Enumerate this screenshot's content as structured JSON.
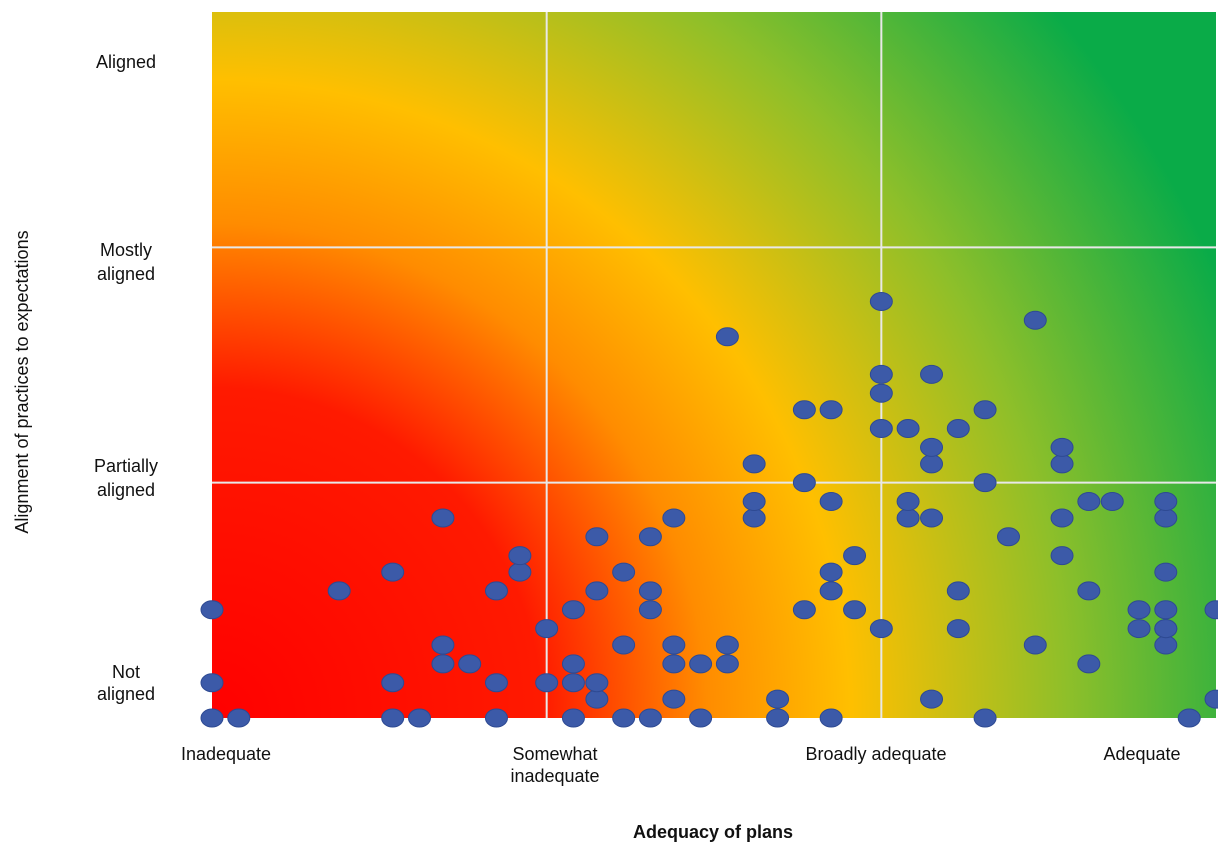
{
  "chart_data": {
    "type": "scatter",
    "title": "",
    "xlabel": "Adequacy of plans",
    "ylabel": "Alignment of practices to expectations",
    "x_tick_labels": [
      [
        "Inadequate"
      ],
      [
        "Somewhat",
        "inadequate"
      ],
      [
        "Broadly adequate"
      ],
      [
        "Adequate"
      ]
    ],
    "y_tick_labels": [
      [
        "Not",
        "aligned"
      ],
      [
        "Partially",
        "aligned"
      ],
      [
        "Mostly",
        "aligned"
      ],
      [
        "Aligned"
      ]
    ],
    "xlim": [
      0,
      3
    ],
    "ylim": [
      0,
      3
    ],
    "grid": true,
    "background_gradient": "red at bottom-left through orange and yellow to green at top-right",
    "point_color": "#3c5aa8",
    "points": [
      [
        0.0,
        0.0
      ],
      [
        0.08,
        0.0
      ],
      [
        0.54,
        0.0
      ],
      [
        0.62,
        0.0
      ],
      [
        0.85,
        0.0
      ],
      [
        1.08,
        0.0
      ],
      [
        1.23,
        0.0
      ],
      [
        1.31,
        0.0
      ],
      [
        1.46,
        0.0
      ],
      [
        1.69,
        0.0
      ],
      [
        1.85,
        0.0
      ],
      [
        2.31,
        0.0
      ],
      [
        2.92,
        0.0
      ],
      [
        1.15,
        0.08
      ],
      [
        1.38,
        0.08
      ],
      [
        1.69,
        0.08
      ],
      [
        2.15,
        0.08
      ],
      [
        3.0,
        0.08
      ],
      [
        0.0,
        0.15
      ],
      [
        0.54,
        0.15
      ],
      [
        0.85,
        0.15
      ],
      [
        1.0,
        0.15
      ],
      [
        1.08,
        0.15
      ],
      [
        1.15,
        0.15
      ],
      [
        0.69,
        0.23
      ],
      [
        0.77,
        0.23
      ],
      [
        1.08,
        0.23
      ],
      [
        1.38,
        0.23
      ],
      [
        1.46,
        0.23
      ],
      [
        1.54,
        0.23
      ],
      [
        2.62,
        0.23
      ],
      [
        0.69,
        0.31
      ],
      [
        1.23,
        0.31
      ],
      [
        1.38,
        0.31
      ],
      [
        1.54,
        0.31
      ],
      [
        2.46,
        0.31
      ],
      [
        2.85,
        0.31
      ],
      [
        1.0,
        0.38
      ],
      [
        2.0,
        0.38
      ],
      [
        2.23,
        0.38
      ],
      [
        2.77,
        0.38
      ],
      [
        2.85,
        0.38
      ],
      [
        2.85,
        0.38
      ],
      [
        0.0,
        0.46
      ],
      [
        1.08,
        0.46
      ],
      [
        1.31,
        0.46
      ],
      [
        1.77,
        0.46
      ],
      [
        1.92,
        0.46
      ],
      [
        2.77,
        0.46
      ],
      [
        2.85,
        0.46
      ],
      [
        3.0,
        0.46
      ],
      [
        0.38,
        0.54
      ],
      [
        0.85,
        0.54
      ],
      [
        1.15,
        0.54
      ],
      [
        1.31,
        0.54
      ],
      [
        1.85,
        0.54
      ],
      [
        2.23,
        0.54
      ],
      [
        2.62,
        0.54
      ],
      [
        0.54,
        0.62
      ],
      [
        0.92,
        0.62
      ],
      [
        1.23,
        0.62
      ],
      [
        1.85,
        0.62
      ],
      [
        2.85,
        0.62
      ],
      [
        0.92,
        0.69
      ],
      [
        1.92,
        0.69
      ],
      [
        2.54,
        0.69
      ],
      [
        1.15,
        0.77
      ],
      [
        1.31,
        0.77
      ],
      [
        2.38,
        0.77
      ],
      [
        0.69,
        0.85
      ],
      [
        1.38,
        0.85
      ],
      [
        1.62,
        0.85
      ],
      [
        2.08,
        0.85
      ],
      [
        2.15,
        0.85
      ],
      [
        2.54,
        0.85
      ],
      [
        2.85,
        0.85
      ],
      [
        1.62,
        0.92
      ],
      [
        1.85,
        0.92
      ],
      [
        2.08,
        0.92
      ],
      [
        2.62,
        0.92
      ],
      [
        2.69,
        0.92
      ],
      [
        2.85,
        0.92
      ],
      [
        1.77,
        1.0
      ],
      [
        2.31,
        1.0
      ],
      [
        1.62,
        1.08
      ],
      [
        2.15,
        1.08
      ],
      [
        2.54,
        1.08
      ],
      [
        2.15,
        1.15
      ],
      [
        2.54,
        1.15
      ],
      [
        2.0,
        1.23
      ],
      [
        2.08,
        1.23
      ],
      [
        2.23,
        1.23
      ],
      [
        1.77,
        1.31
      ],
      [
        1.85,
        1.31
      ],
      [
        2.31,
        1.31
      ],
      [
        2.0,
        1.38
      ],
      [
        2.0,
        1.46
      ],
      [
        2.15,
        1.46
      ],
      [
        1.54,
        1.62
      ],
      [
        2.46,
        1.69
      ],
      [
        2.0,
        1.77
      ]
    ]
  }
}
